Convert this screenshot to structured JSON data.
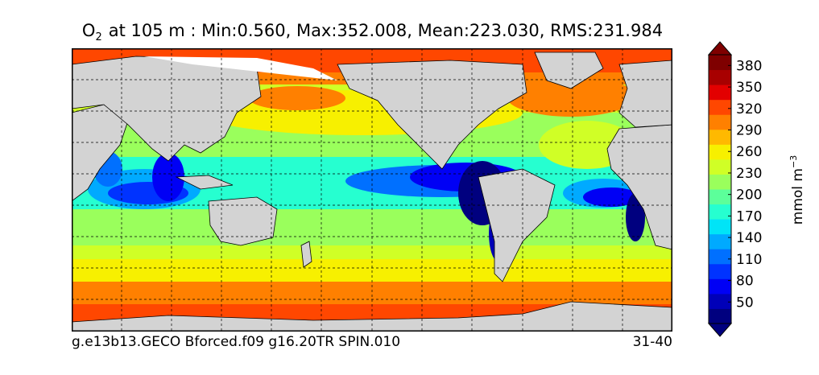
{
  "title": {
    "symbol": "O",
    "subscript": "2",
    "text": "at 105 m : Min:0.560, Max:352.008, Mean:223.030, RMS:231.984"
  },
  "footer": {
    "left": "g.e13b13.GECO Bforced.f09 g16.20TR SPIN.010",
    "right": "31-40"
  },
  "chart_data": {
    "type": "heatmap",
    "title": "O2 at 105 m : Min:0.560, Max:352.008, Mean:223.030, RMS:231.984",
    "variable": "O2",
    "depth_m": 105,
    "stats": {
      "min": 0.56,
      "max": 352.008,
      "mean": 223.03,
      "rms": 231.984
    },
    "colorbar": {
      "label": "mmol m",
      "label_exponent": "−3",
      "ticks": [
        50,
        80,
        110,
        140,
        170,
        200,
        230,
        260,
        290,
        320,
        350,
        380
      ],
      "levels": [
        20,
        35,
        50,
        65,
        80,
        95,
        110,
        125,
        140,
        155,
        170,
        185,
        200,
        215,
        230,
        245,
        260,
        275,
        290,
        305,
        320,
        335,
        350,
        365,
        380,
        395
      ],
      "colors": [
        "#00007f",
        "#0000b8",
        "#0000f5",
        "#0033ff",
        "#0070ff",
        "#00aaff",
        "#00e4f7",
        "#26ffd0",
        "#5cff9a",
        "#9aff5c",
        "#d0ff26",
        "#f7f000",
        "#ffb900",
        "#ff8000",
        "#ff4700",
        "#e30000",
        "#a80000",
        "#7f0000"
      ],
      "extend": "both"
    },
    "grid": true,
    "colors": {
      "land": "#d3d3d3",
      "sea_ice": "#ffffff",
      "frame": "#000000"
    }
  }
}
